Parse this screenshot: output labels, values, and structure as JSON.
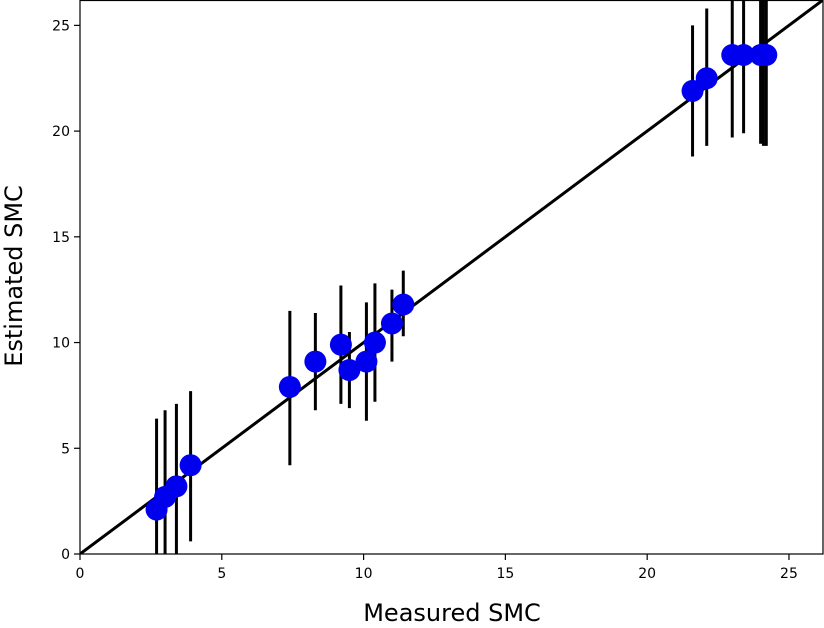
{
  "chart_data": {
    "type": "scatter",
    "title": "",
    "xlabel": "Measured SMC",
    "ylabel": "Estimated SMC",
    "xlim": [
      0,
      26.2
    ],
    "ylim": [
      0,
      26.2
    ],
    "xticks": [
      0,
      5,
      10,
      15,
      20,
      25
    ],
    "yticks": [
      0,
      5,
      10,
      15,
      20,
      25
    ],
    "grid": false,
    "reference_line": {
      "x": [
        0,
        26.2
      ],
      "y": [
        0,
        26.2
      ],
      "color": "#000000"
    },
    "point_color": "#0000ee",
    "errorbar_color": "#000000",
    "points": [
      {
        "x": 2.7,
        "y": 2.1,
        "ylow": 0.0,
        "yhigh": 6.4
      },
      {
        "x": 3.0,
        "y": 2.7,
        "ylow": 0.0,
        "yhigh": 6.8
      },
      {
        "x": 3.4,
        "y": 3.2,
        "ylow": 0.0,
        "yhigh": 7.1
      },
      {
        "x": 3.9,
        "y": 4.2,
        "ylow": 0.6,
        "yhigh": 7.7
      },
      {
        "x": 7.4,
        "y": 7.9,
        "ylow": 4.2,
        "yhigh": 11.5
      },
      {
        "x": 8.3,
        "y": 9.1,
        "ylow": 6.8,
        "yhigh": 11.4
      },
      {
        "x": 9.2,
        "y": 9.9,
        "ylow": 7.1,
        "yhigh": 12.7
      },
      {
        "x": 9.5,
        "y": 8.7,
        "ylow": 6.9,
        "yhigh": 10.5
      },
      {
        "x": 10.1,
        "y": 9.1,
        "ylow": 6.3,
        "yhigh": 11.9
      },
      {
        "x": 10.4,
        "y": 10.0,
        "ylow": 7.2,
        "yhigh": 12.8
      },
      {
        "x": 11.0,
        "y": 10.9,
        "ylow": 9.1,
        "yhigh": 12.5
      },
      {
        "x": 11.4,
        "y": 11.8,
        "ylow": 10.3,
        "yhigh": 13.4
      },
      {
        "x": 21.6,
        "y": 21.9,
        "ylow": 18.8,
        "yhigh": 25.0
      },
      {
        "x": 22.1,
        "y": 22.5,
        "ylow": 19.3,
        "yhigh": 25.8
      },
      {
        "x": 23.0,
        "y": 23.6,
        "ylow": 19.7,
        "yhigh": 26.2
      },
      {
        "x": 23.4,
        "y": 23.6,
        "ylow": 19.9,
        "yhigh": 26.2
      },
      {
        "x": 24.0,
        "y": 23.6,
        "ylow": 19.4,
        "yhigh": 26.2
      },
      {
        "x": 24.1,
        "y": 23.6,
        "ylow": 19.3,
        "yhigh": 26.2
      },
      {
        "x": 24.2,
        "y": 23.6,
        "ylow": 19.3,
        "yhigh": 26.2
      }
    ]
  }
}
